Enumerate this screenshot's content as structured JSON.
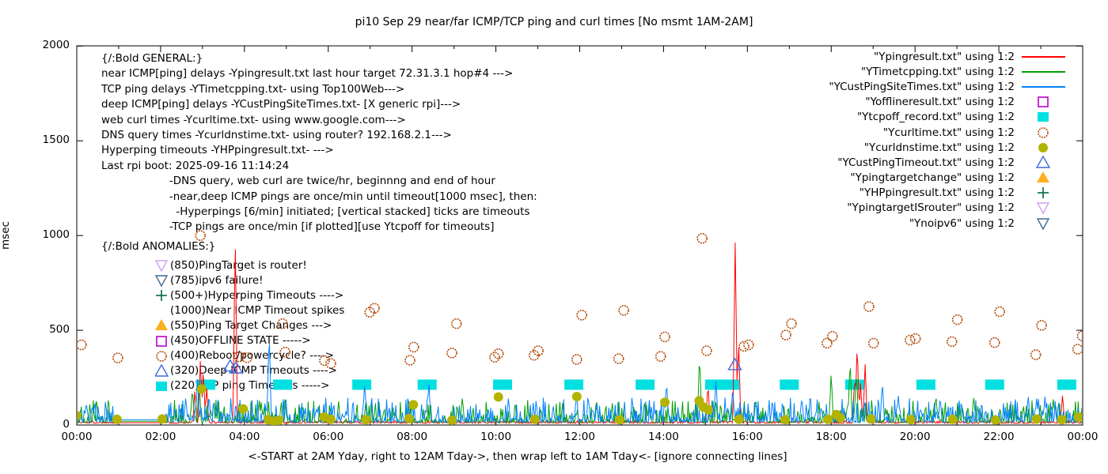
{
  "title": "pi10 Sep 29  near/far ICMP/TCP ping and curl times [No msmt 1AM-2AM]",
  "axes": {
    "y": {
      "label": "msec",
      "ticks": [
        0,
        500,
        1000,
        1500,
        2000
      ],
      "min": 0,
      "max": 2000
    },
    "x": {
      "label": "<-START at 2AM Yday, right to 12AM Tday->, then wrap left to 1AM Tday<- [ignore connecting lines]",
      "tick_labels": [
        "00:00",
        "02:00",
        "04:00",
        "06:00",
        "08:00",
        "10:00",
        "12:00",
        "14:00",
        "16:00",
        "18:00",
        "20:00",
        "22:00",
        "00:00"
      ],
      "hours": 24,
      "minor_tick_every_hours": 1
    }
  },
  "legend": {
    "entries": [
      {
        "label": "\"Ypingresult.txt\" using 1:2",
        "marker": "line",
        "color": "#ff0000"
      },
      {
        "label": "\"YTimetcpping.txt\" using 1:2",
        "marker": "line",
        "color": "#00a000"
      },
      {
        "label": "\"YCustPingSiteTimes.txt\" using 1:2",
        "marker": "line",
        "color": "#0080ff"
      },
      {
        "label": "\"Yofflineresult.txt\" using 1:2",
        "marker": "square-open",
        "color": "#bb00cc"
      },
      {
        "label": "\"Ytcpoff_record.txt\" using 1:2",
        "marker": "square-filled",
        "color": "#00e0e0"
      },
      {
        "label": "\"Ycurltime.txt\" using 1:2",
        "marker": "circle-open",
        "color": "#b24a0a"
      },
      {
        "label": "\"Ycurldnstime.txt\" using 1:2",
        "marker": "circle-filled",
        "color": "#b3b300"
      },
      {
        "label": "\"YCustPingTimeout.txt\" using 1:2",
        "marker": "triangle-open",
        "color": "#4169e1"
      },
      {
        "label": "\"Ypingtargetchange\" using 1:2",
        "marker": "triangle-filled",
        "color": "#ffb020"
      },
      {
        "label": "\"YHPpingresult.txt\" using 1:2",
        "marker": "plus",
        "color": "#00694a"
      },
      {
        "label": "\"YpingtargetISrouter\" using 1:2",
        "marker": "tri-down-open",
        "color": "#d0a0f0"
      },
      {
        "label": "\"Ynoipv6\" using 1:2",
        "marker": "tri-down-open",
        "color": "#3e6a90"
      }
    ]
  },
  "annotations": {
    "general_lines": [
      "{/:Bold GENERAL:}",
      "near ICMP[ping] delays -Ypingresult.txt last hour target 72.31.3.1 hop#4 --->",
      "TCP ping delays -YTimetcpping.txt- using Top100Web--->",
      "deep ICMP[ping] delays -YCustPingSiteTimes.txt- [X generic rpi]--->",
      "web curl times -Ycurltime.txt- using www.google.com--->",
      "DNS query times -Ycurldnstime.txt- using router? 192.168.2.1--->",
      "Hyperping timeouts -YHPpingresult.txt- --->",
      "Last rpi boot: 2025-09-16 11:14:24",
      "                    -DNS query, web curl are twice/hr, beginnng and end of hour",
      "                    -near,deep ICMP pings are once/min until timeout[1000 msec], then:",
      "                      -Hyperpings [6/min] initiated; [vertical stacked] ticks are timeouts",
      "                    -TCP pings are once/min [if plotted][use Ytcpoff for timeouts]"
    ],
    "anomalies_heading": "{/:Bold ANOMALIES:}",
    "anomalies": [
      {
        "marker": "tri-down-open",
        "color": "#d0a0f0",
        "label": "(850)PingTarget is router!"
      },
      {
        "marker": "tri-down-open",
        "color": "#3e6a90",
        "label": "(785)ipv6 failure!"
      },
      {
        "marker": "plus",
        "color": "#00694a",
        "label": "(500+)Hyperping Timeouts ---->"
      },
      {
        "marker": "none",
        "color": "",
        "label": "(1000)Near ICMP Timeout spikes"
      },
      {
        "marker": "triangle-filled",
        "color": "#ffb020",
        "label": "(550)Ping Target Changes --->"
      },
      {
        "marker": "square-open",
        "color": "#bb00cc",
        "label": "(450)OFFLINE STATE ----->"
      },
      {
        "marker": "circle-open",
        "color": "#b24a0a",
        "label": "(400)Reboot/powercycle? ---->"
      },
      {
        "marker": "triangle-open",
        "color": "#4169e1",
        "label": "(320)Deep ICMP Timeouts ---->"
      },
      {
        "marker": "square-filled",
        "color": "#00e0e0",
        "label": "(220)TCP ping Timeouts ----->"
      }
    ]
  },
  "chart_data": {
    "type": "line",
    "x_unit": "hours_since_00:00",
    "x_range": [
      0,
      24
    ],
    "y_range": [
      0,
      2000
    ],
    "grid": false,
    "legend_position": "top-right-inside",
    "no_measurement_gap_hours": [
      0.98,
      2.08
    ],
    "noise_seed": 1337,
    "series": [
      {
        "name": "Ypingresult.txt",
        "type": "noisy-line",
        "color": "#ff0000",
        "noise": [
          9,
          14,
          1.6
        ],
        "gap_value": 12,
        "spikes": [
          [
            2.82,
            190
          ],
          [
            2.95,
            350
          ],
          [
            3.02,
            300
          ],
          [
            3.1,
            200
          ],
          [
            3.78,
            1000
          ],
          [
            15.06,
            220
          ],
          [
            15.71,
            1000
          ],
          [
            15.79,
            460
          ],
          [
            18.56,
            260
          ],
          [
            18.62,
            440
          ],
          [
            18.7,
            220
          ],
          [
            18.81,
            320
          ],
          [
            23.52,
            160
          ]
        ]
      },
      {
        "name": "YTimetcpping.txt",
        "type": "noisy-line",
        "color": "#00a000",
        "noise": [
          13,
          120,
          3
        ],
        "gap_value": 20,
        "spikes": [
          [
            2.76,
            200
          ],
          [
            2.92,
            250
          ],
          [
            4.4,
            120
          ],
          [
            6.9,
            140
          ],
          [
            9.2,
            150
          ],
          [
            12.4,
            140
          ],
          [
            14.86,
            380
          ],
          [
            16.2,
            140
          ],
          [
            18.0,
            280
          ],
          [
            18.45,
            350
          ],
          [
            18.6,
            300
          ],
          [
            20.5,
            150
          ],
          [
            21.4,
            160
          ],
          [
            23.3,
            140
          ]
        ]
      },
      {
        "name": "YCustPingSiteTimes.txt",
        "type": "noisy-line",
        "color": "#0080ff",
        "noise": [
          15,
          130,
          3
        ],
        "gap_value": 28,
        "spikes": [
          [
            2.6,
            150
          ],
          [
            2.88,
            250
          ],
          [
            4.59,
            500
          ],
          [
            6.87,
            230
          ],
          [
            8.4,
            230
          ],
          [
            10.3,
            150
          ],
          [
            11.92,
            160
          ],
          [
            14.07,
            235
          ],
          [
            15.25,
            245
          ],
          [
            15.65,
            200
          ],
          [
            17.3,
            150
          ],
          [
            19.22,
            235
          ],
          [
            19.6,
            160
          ],
          [
            20.6,
            150
          ],
          [
            22.7,
            160
          ],
          [
            23.1,
            150
          ]
        ]
      },
      {
        "name": "Yofflineresult.txt",
        "type": "points",
        "marker": "square-open",
        "color": "#bb00cc",
        "points": []
      },
      {
        "name": "Ytcpoff_record.txt",
        "type": "points",
        "marker": "square-filled",
        "color": "#00e0e0",
        "points": [
          [
            3.08,
            215
          ],
          [
            4.91,
            215
          ],
          [
            6.8,
            215
          ],
          [
            8.36,
            215
          ],
          [
            10.16,
            215
          ],
          [
            11.86,
            215
          ],
          [
            13.56,
            215
          ],
          [
            15.22,
            215
          ],
          [
            15.58,
            215
          ],
          [
            17.0,
            215
          ],
          [
            18.56,
            215
          ],
          [
            20.26,
            215
          ],
          [
            21.9,
            215
          ],
          [
            23.62,
            215
          ]
        ]
      },
      {
        "name": "Ycurltime.txt",
        "type": "points",
        "marker": "circle-open",
        "color": "#b24a0a",
        "points": [
          [
            0.11,
            423
          ],
          [
            0.98,
            354
          ],
          [
            2.95,
            1000
          ],
          [
            3.87,
            360
          ],
          [
            4.06,
            355
          ],
          [
            4.91,
            535
          ],
          [
            4.97,
            385
          ],
          [
            5.91,
            340
          ],
          [
            6.06,
            325
          ],
          [
            6.99,
            595
          ],
          [
            7.1,
            616
          ],
          [
            7.95,
            342
          ],
          [
            8.04,
            411
          ],
          [
            8.95,
            380
          ],
          [
            9.06,
            535
          ],
          [
            9.97,
            358
          ],
          [
            10.06,
            376
          ],
          [
            10.91,
            368
          ],
          [
            11.01,
            392
          ],
          [
            11.93,
            346
          ],
          [
            12.05,
            580
          ],
          [
            12.93,
            350
          ],
          [
            13.05,
            605
          ],
          [
            13.93,
            362
          ],
          [
            14.03,
            465
          ],
          [
            14.92,
            985
          ],
          [
            15.03,
            392
          ],
          [
            15.92,
            415
          ],
          [
            16.03,
            423
          ],
          [
            16.92,
            475
          ],
          [
            17.05,
            535
          ],
          [
            17.9,
            432
          ],
          [
            18.03,
            468
          ],
          [
            18.9,
            625
          ],
          [
            19.01,
            432
          ],
          [
            19.88,
            448
          ],
          [
            20.01,
            456
          ],
          [
            20.88,
            440
          ],
          [
            21.01,
            556
          ],
          [
            21.9,
            435
          ],
          [
            22.02,
            598
          ],
          [
            22.88,
            371
          ],
          [
            23.02,
            526
          ],
          [
            23.88,
            400
          ],
          [
            23.99,
            470
          ]
        ]
      },
      {
        "name": "Ycurldnstime.txt",
        "type": "points",
        "marker": "circle-filled",
        "color": "#b3b300",
        "points": [
          [
            0.0,
            50
          ],
          [
            0.96,
            30
          ],
          [
            2.04,
            32
          ],
          [
            2.98,
            190
          ],
          [
            3.97,
            85
          ],
          [
            4.57,
            28
          ],
          [
            4.7,
            20
          ],
          [
            4.82,
            25
          ],
          [
            5.9,
            42
          ],
          [
            6.06,
            30
          ],
          [
            6.9,
            28
          ],
          [
            7.93,
            34
          ],
          [
            8.03,
            107
          ],
          [
            8.95,
            25
          ],
          [
            10.06,
            148
          ],
          [
            10.93,
            30
          ],
          [
            11.93,
            150
          ],
          [
            12.95,
            28
          ],
          [
            14.03,
            120
          ],
          [
            14.85,
            128
          ],
          [
            14.95,
            95
          ],
          [
            15.07,
            80
          ],
          [
            15.8,
            30
          ],
          [
            16.9,
            28
          ],
          [
            17.92,
            30
          ],
          [
            18.12,
            55
          ],
          [
            18.22,
            38
          ],
          [
            18.95,
            32
          ],
          [
            19.9,
            28
          ],
          [
            20.9,
            30
          ],
          [
            21.92,
            26
          ],
          [
            22.9,
            32
          ],
          [
            23.5,
            28
          ],
          [
            23.9,
            42
          ]
        ]
      },
      {
        "name": "YCustPingTimeout.txt",
        "type": "points",
        "marker": "triangle-open",
        "color": "#4169e1",
        "points": [
          [
            3.66,
            310
          ],
          [
            3.8,
            300
          ],
          [
            15.7,
            317
          ]
        ]
      },
      {
        "name": "Ypingtargetchange",
        "type": "points",
        "marker": "triangle-filled",
        "color": "#ffb020",
        "points": []
      },
      {
        "name": "YHPpingresult.txt",
        "type": "points",
        "marker": "plus",
        "color": "#00694a",
        "points": []
      },
      {
        "name": "YpingtargetISrouter",
        "type": "points",
        "marker": "tri-down-open",
        "color": "#d0a0f0",
        "points": []
      },
      {
        "name": "Ynoipv6",
        "type": "points",
        "marker": "tri-down-open",
        "color": "#3e6a90",
        "points": []
      }
    ]
  }
}
